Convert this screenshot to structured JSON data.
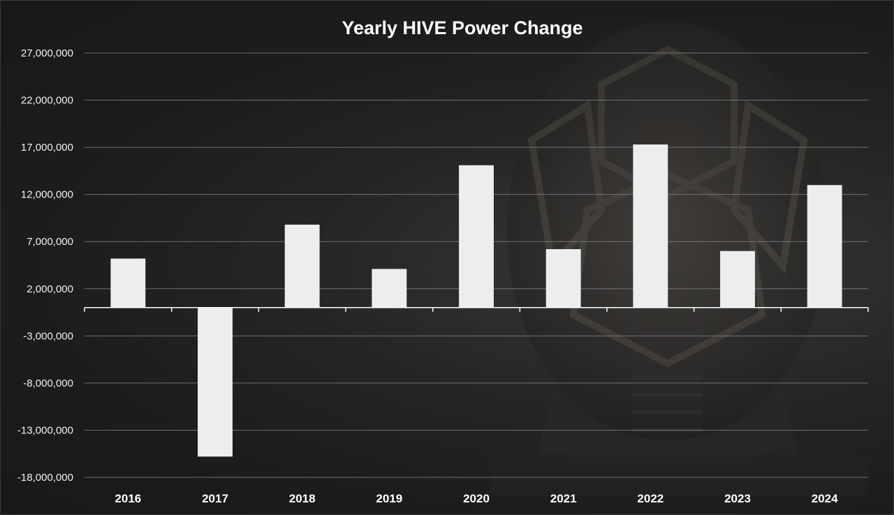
{
  "colors": {
    "background": "#1c1c1c",
    "bar": "#ededed",
    "text": "#ffffff",
    "grid": "#8a8a8a"
  },
  "chart_data": {
    "type": "bar",
    "title": "Yearly HIVE Power Change",
    "xlabel": "",
    "ylabel": "",
    "categories": [
      "2016",
      "2017",
      "2018",
      "2019",
      "2020",
      "2021",
      "2022",
      "2023",
      "2024"
    ],
    "values": [
      5200000,
      -15800000,
      8800000,
      4100000,
      15100000,
      6200000,
      17300000,
      6000000,
      13000000
    ],
    "ylim": [
      -18000000,
      27000000
    ],
    "yticks": [
      27000000,
      22000000,
      17000000,
      12000000,
      7000000,
      2000000,
      -3000000,
      -8000000,
      -13000000,
      -18000000
    ],
    "ytick_labels": [
      "27,000,000",
      "22,000,000",
      "17,000,000",
      "12,000,000",
      "7,000,000",
      "2,000,000",
      "-3,000,000",
      "-8,000,000",
      "-13,000,000",
      "-18,000,000"
    ],
    "grid": true,
    "legend": "none"
  }
}
